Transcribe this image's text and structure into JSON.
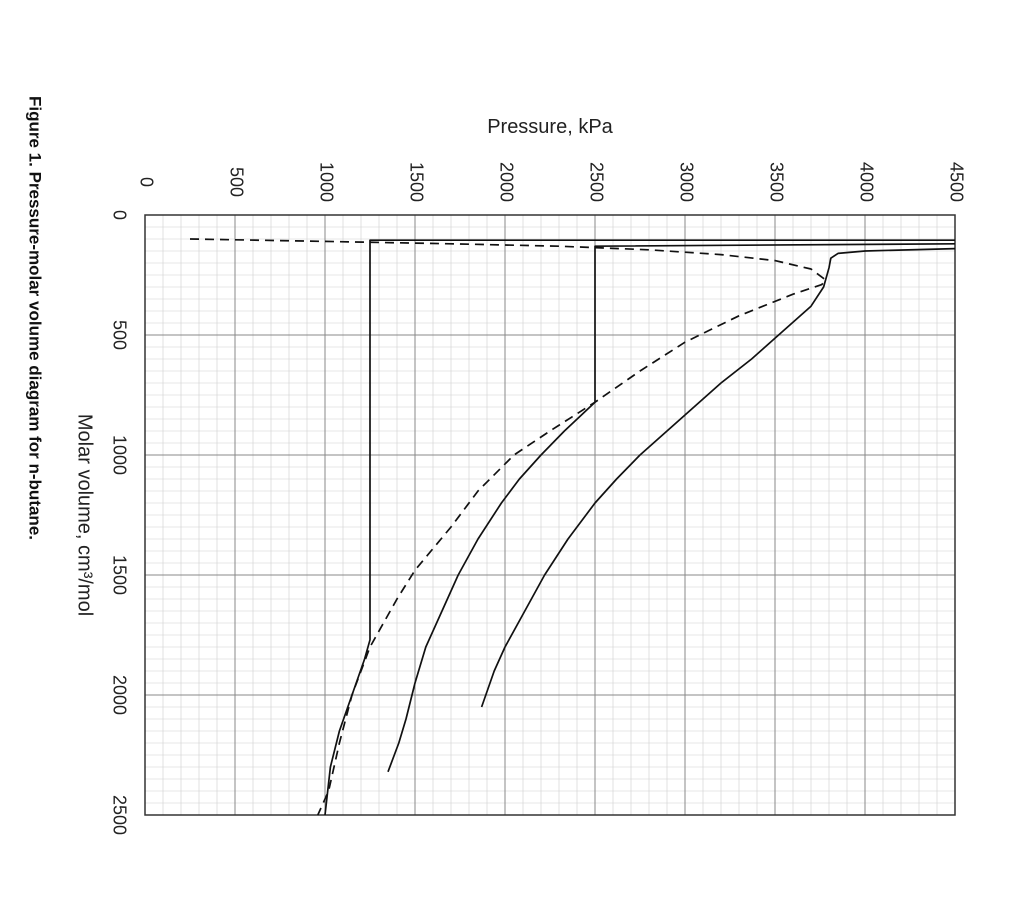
{
  "chart_data": {
    "type": "line",
    "caption": "Figure 1. Pressure-molar volume diagram for n-butane.",
    "xlabel": "Molar volume, cm³/mol",
    "ylabel": "Pressure, kPa",
    "xlim": [
      0,
      2500
    ],
    "ylim": [
      0,
      4500
    ],
    "x_ticks": [
      "0",
      "500",
      "1000",
      "1500",
      "2000",
      "2500"
    ],
    "y_ticks": [
      "0",
      "500",
      "1000",
      "1500",
      "2000",
      "2500",
      "3000",
      "3500",
      "4000",
      "4500"
    ],
    "x_major": 500,
    "x_minor": 50,
    "y_major": 500,
    "y_minor": 100,
    "grid": true,
    "orientation": "rotated 90° clockwise",
    "series": [
      {
        "style": "dashed",
        "points": [
          [
            100,
            250
          ],
          [
            110,
            1000
          ],
          [
            120,
            1700
          ],
          [
            130,
            2300
          ],
          [
            145,
            2800
          ],
          [
            165,
            3200
          ],
          [
            190,
            3500
          ],
          [
            225,
            3700
          ],
          [
            270,
            3780
          ],
          [
            290,
            3760
          ],
          [
            330,
            3600
          ],
          [
            420,
            3300
          ],
          [
            530,
            3000
          ],
          [
            650,
            2750
          ],
          [
            780,
            2500
          ],
          [
            900,
            2250
          ],
          [
            1000,
            2050
          ],
          [
            1150,
            1850
          ],
          [
            1300,
            1700
          ],
          [
            1480,
            1500
          ],
          [
            1600,
            1400
          ],
          [
            1800,
            1250
          ],
          [
            2000,
            1150
          ],
          [
            2200,
            1080
          ],
          [
            2400,
            1020
          ],
          [
            2500,
            960
          ]
        ]
      },
      {
        "style": "solid",
        "points": [
          [
            105,
            4500
          ],
          [
            105,
            1250
          ],
          [
            1770,
            1250
          ],
          [
            1850,
            1220
          ],
          [
            2000,
            1150
          ],
          [
            2150,
            1080
          ],
          [
            2300,
            1030
          ],
          [
            2500,
            1000
          ]
        ]
      },
      {
        "style": "solid",
        "points": [
          [
            120,
            4500
          ],
          [
            130,
            2500
          ],
          [
            780,
            2500
          ],
          [
            900,
            2330
          ],
          [
            1000,
            2200
          ],
          [
            1100,
            2080
          ],
          [
            1200,
            1980
          ],
          [
            1350,
            1850
          ],
          [
            1500,
            1740
          ],
          [
            1650,
            1650
          ],
          [
            1800,
            1560
          ],
          [
            1950,
            1500
          ],
          [
            2100,
            1450
          ],
          [
            2200,
            1410
          ],
          [
            2320,
            1350
          ]
        ]
      },
      {
        "style": "solid",
        "points": [
          [
            140,
            4500
          ],
          [
            150,
            4000
          ],
          [
            160,
            3850
          ],
          [
            180,
            3810
          ],
          [
            220,
            3800
          ],
          [
            300,
            3770
          ],
          [
            380,
            3700
          ],
          [
            500,
            3520
          ],
          [
            600,
            3370
          ],
          [
            700,
            3200
          ],
          [
            800,
            3050
          ],
          [
            900,
            2900
          ],
          [
            1000,
            2750
          ],
          [
            1100,
            2620
          ],
          [
            1200,
            2500
          ],
          [
            1350,
            2350
          ],
          [
            1500,
            2220
          ],
          [
            1650,
            2110
          ],
          [
            1800,
            2000
          ],
          [
            1900,
            1940
          ],
          [
            2050,
            1870
          ]
        ]
      }
    ]
  }
}
